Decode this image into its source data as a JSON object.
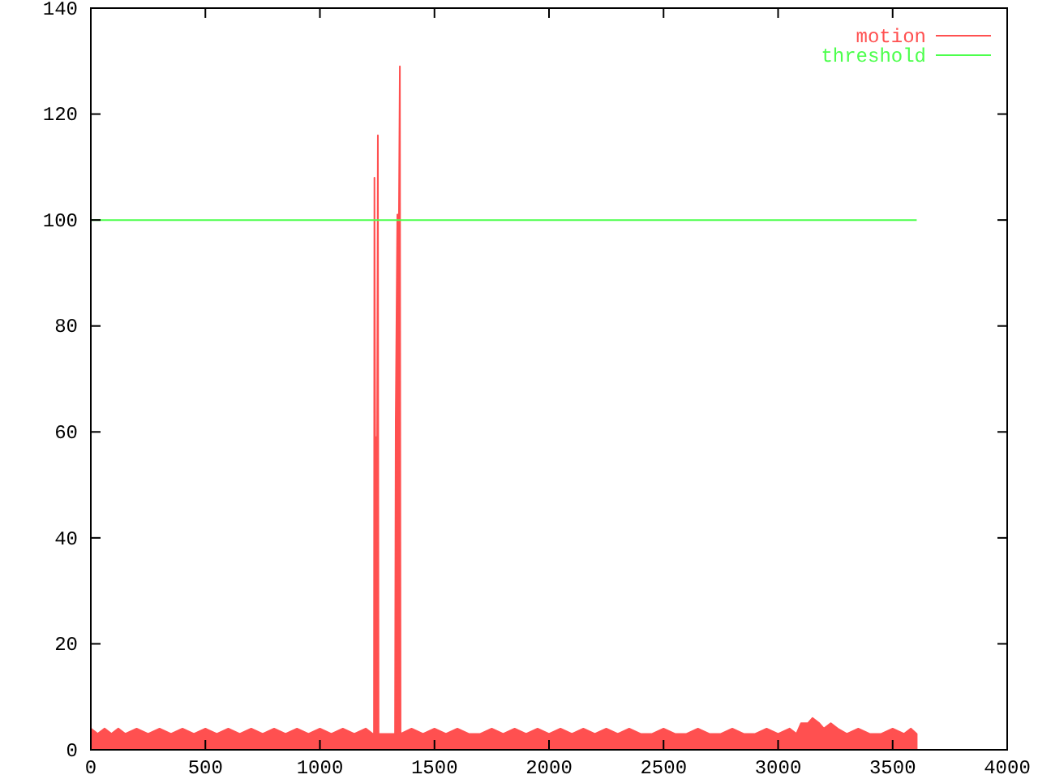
{
  "chart_data": {
    "type": "line",
    "xlim": [
      0,
      4000
    ],
    "ylim": [
      0,
      140
    ],
    "xticks": [
      0,
      500,
      1000,
      1500,
      2000,
      2500,
      3000,
      3500,
      4000
    ],
    "yticks": [
      0,
      20,
      40,
      60,
      80,
      100,
      120,
      140
    ],
    "grid": false,
    "legend": "top right",
    "series": [
      {
        "name": "motion",
        "type": "area",
        "color": "#ff5050",
        "x": [
          0,
          30,
          60,
          90,
          120,
          150,
          200,
          250,
          300,
          350,
          400,
          450,
          500,
          550,
          600,
          650,
          700,
          750,
          800,
          850,
          900,
          950,
          1000,
          1050,
          1100,
          1150,
          1200,
          1230,
          1236,
          1238,
          1241,
          1250,
          1253,
          1256,
          1300,
          1328,
          1331,
          1338,
          1345,
          1349,
          1352,
          1400,
          1450,
          1500,
          1550,
          1600,
          1650,
          1700,
          1750,
          1800,
          1850,
          1900,
          1950,
          2000,
          2050,
          2100,
          2150,
          2200,
          2250,
          2300,
          2350,
          2400,
          2450,
          2500,
          2550,
          2600,
          2650,
          2700,
          2750,
          2800,
          2850,
          2900,
          2950,
          3000,
          3050,
          3080,
          3100,
          3130,
          3150,
          3180,
          3200,
          3230,
          3260,
          3300,
          3350,
          3400,
          3450,
          3500,
          3550,
          3580,
          3605
        ],
        "values": [
          4,
          3,
          4,
          3,
          4,
          3,
          4,
          3,
          4,
          3,
          4,
          3,
          4,
          3,
          4,
          3,
          4,
          3,
          4,
          3,
          4,
          3,
          4,
          3,
          4,
          3,
          4,
          3,
          3,
          108,
          59,
          59,
          116,
          3,
          3,
          3,
          62,
          101,
          101,
          129,
          3,
          4,
          3,
          4,
          3,
          4,
          3,
          3,
          4,
          3,
          4,
          3,
          4,
          3,
          4,
          3,
          4,
          3,
          4,
          3,
          4,
          3,
          3,
          4,
          3,
          3,
          4,
          3,
          3,
          4,
          3,
          3,
          4,
          3,
          4,
          3,
          5,
          5,
          6,
          5,
          4,
          5,
          4,
          3,
          4,
          3,
          3,
          4,
          3,
          4,
          3
        ]
      },
      {
        "name": "threshold",
        "color": "#4cff4c",
        "x": [
          0,
          3605
        ],
        "values": [
          100,
          100
        ]
      }
    ]
  }
}
